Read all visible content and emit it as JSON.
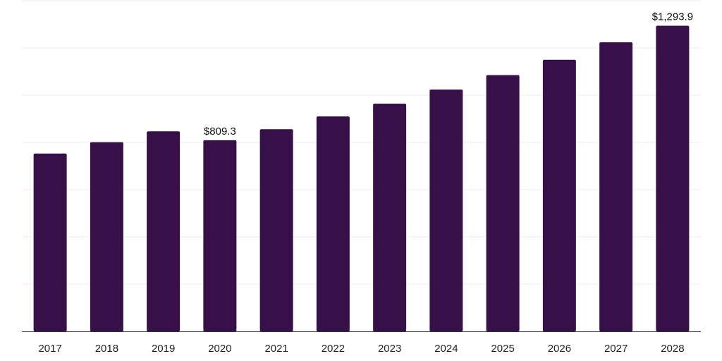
{
  "chart_data": {
    "type": "bar",
    "categories": [
      "2017",
      "2018",
      "2019",
      "2020",
      "2021",
      "2022",
      "2023",
      "2024",
      "2025",
      "2026",
      "2027",
      "2028"
    ],
    "values": [
      753.0,
      801.0,
      847.0,
      809.3,
      856.0,
      910.0,
      964.0,
      1024.0,
      1085.0,
      1150.0,
      1224.0,
      1293.9
    ],
    "data_labels": [
      {
        "category": "2020",
        "text": "$809.3"
      },
      {
        "category": "2028",
        "text": "$1,293.9"
      }
    ],
    "title": "",
    "xlabel": "",
    "ylabel": "",
    "ylim": [
      0,
      1400
    ],
    "grid": true,
    "colors": {
      "bar": "#37104a",
      "grid": "#eeeeee",
      "axis": "#333333"
    }
  }
}
